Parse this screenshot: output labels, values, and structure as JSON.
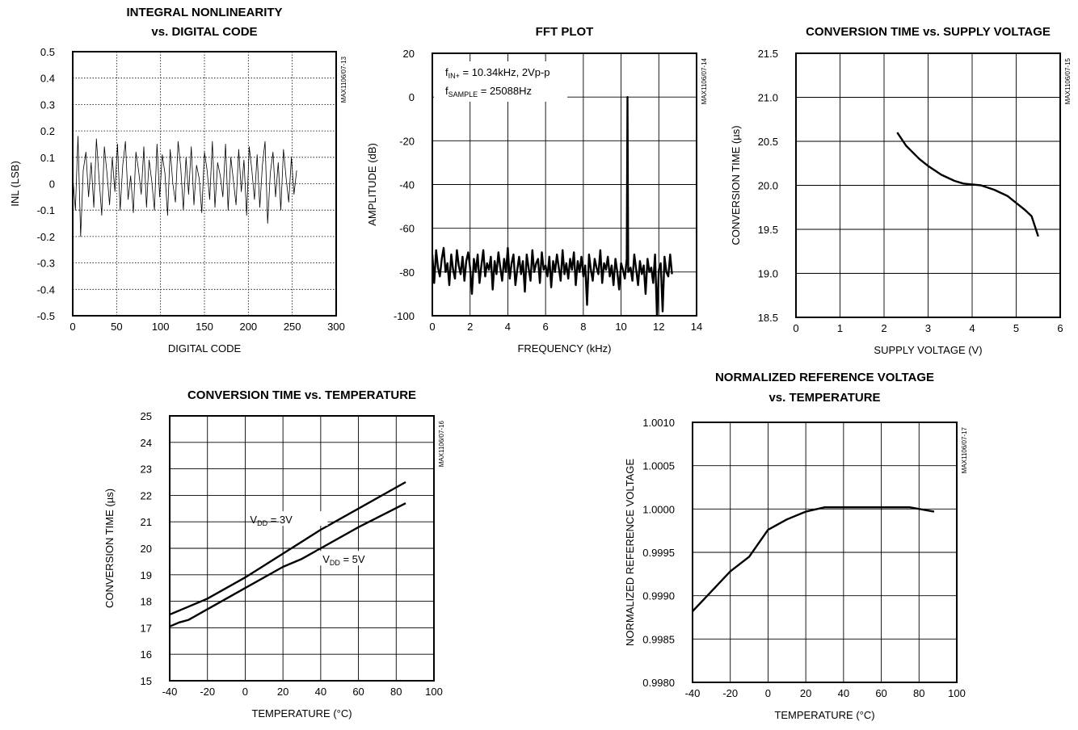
{
  "chart_data": [
    {
      "id": "inl",
      "type": "line",
      "title": [
        "INTEGRAL NONLINEARITY",
        "vs. DIGITAL CODE"
      ],
      "xlabel": "DIGITAL CODE",
      "ylabel": "INL (LSB)",
      "code": "MAX1106/07-13",
      "xlim": [
        0,
        300
      ],
      "ylim": [
        -0.5,
        0.5
      ],
      "xticks": [
        "0",
        "50",
        "100",
        "150",
        "200",
        "250",
        "300"
      ],
      "yticks": [
        "-0.5",
        "-0.4",
        "-0.3",
        "-0.2",
        "-0.1",
        "0",
        "0.1",
        "0.2",
        "0.3",
        "0.4",
        "0.5"
      ],
      "grid": "dotted",
      "series": [
        {
          "x": [
            0,
            3,
            6,
            9,
            12,
            15,
            18,
            21,
            24,
            27,
            30,
            33,
            36,
            39,
            42,
            45,
            48,
            51,
            54,
            57,
            60,
            63,
            66,
            69,
            72,
            75,
            78,
            81,
            84,
            87,
            90,
            93,
            96,
            99,
            102,
            105,
            108,
            111,
            114,
            117,
            120,
            123,
            126,
            129,
            132,
            135,
            138,
            141,
            144,
            147,
            150,
            153,
            156,
            159,
            162,
            165,
            168,
            171,
            174,
            177,
            180,
            183,
            186,
            189,
            192,
            195,
            198,
            201,
            204,
            207,
            210,
            213,
            216,
            219,
            222,
            225,
            228,
            231,
            234,
            237,
            240,
            243,
            246,
            249,
            252,
            255
          ],
          "y": [
            0.03,
            -0.1,
            0.18,
            -0.2,
            0.05,
            0.12,
            -0.05,
            0.08,
            -0.09,
            0.17,
            0.02,
            -0.12,
            0.14,
            0.04,
            -0.08,
            0.1,
            -0.03,
            0.15,
            -0.1,
            0.07,
            0.16,
            -0.06,
            0.03,
            -0.11,
            0.12,
            0.05,
            -0.04,
            0.14,
            -0.09,
            0.09,
            0.01,
            -0.1,
            0.15,
            -0.05,
            0.11,
            0.04,
            -0.12,
            0.13,
            0.0,
            -0.07,
            0.16,
            0.06,
            -0.1,
            0.1,
            -0.04,
            0.14,
            -0.08,
            0.07,
            0.02,
            -0.11,
            0.12,
            0.05,
            -0.06,
            0.16,
            -0.09,
            0.08,
            0.03,
            -0.05,
            0.15,
            -0.1,
            0.1,
            0.01,
            -0.08,
            0.13,
            -0.03,
            0.09,
            -0.12,
            0.14,
            0.05,
            -0.06,
            0.11,
            -0.09,
            0.07,
            0.16,
            -0.15,
            0.04,
            0.12,
            -0.05,
            0.08,
            -0.1,
            0.13,
            0.02,
            -0.07,
            0.1,
            -0.04,
            0.05
          ]
        }
      ]
    },
    {
      "id": "fft",
      "type": "line",
      "title": [
        "FFT PLOT"
      ],
      "xlabel": "FREQUENCY (kHz)",
      "ylabel": "AMPLITUDE (dB)",
      "code": "MAX1106/07-14",
      "xlim": [
        0,
        14
      ],
      "ylim": [
        -100,
        20
      ],
      "xticks": [
        "0",
        "2",
        "4",
        "6",
        "8",
        "10",
        "12",
        "14"
      ],
      "yticks": [
        "-100",
        "-80",
        "-60",
        "-40",
        "-20",
        "0",
        "20"
      ],
      "grid": "solid",
      "annotations": [
        {
          "prefix": "f",
          "sub": "IN+",
          "rest": " = 10.34kHz, 2Vp-p"
        },
        {
          "prefix": "f",
          "sub": "SAMPLE",
          "rest": " = 25088Hz"
        }
      ],
      "series": [
        {
          "x": [
            0.0,
            0.1,
            0.2,
            0.3,
            0.4,
            0.5,
            0.6,
            0.7,
            0.8,
            0.9,
            1.0,
            1.1,
            1.2,
            1.3,
            1.4,
            1.5,
            1.6,
            1.7,
            1.8,
            1.9,
            2.0,
            2.1,
            2.2,
            2.3,
            2.4,
            2.5,
            2.6,
            2.7,
            2.8,
            2.9,
            3.0,
            3.1,
            3.2,
            3.3,
            3.4,
            3.5,
            3.6,
            3.7,
            3.8,
            3.9,
            4.0,
            4.1,
            4.2,
            4.3,
            4.4,
            4.5,
            4.6,
            4.7,
            4.8,
            4.9,
            5.0,
            5.1,
            5.2,
            5.3,
            5.4,
            5.5,
            5.6,
            5.7,
            5.8,
            5.9,
            6.0,
            6.1,
            6.2,
            6.3,
            6.4,
            6.5,
            6.6,
            6.7,
            6.8,
            6.9,
            7.0,
            7.1,
            7.2,
            7.3,
            7.4,
            7.5,
            7.6,
            7.7,
            7.8,
            7.9,
            8.0,
            8.1,
            8.2,
            8.3,
            8.4,
            8.5,
            8.6,
            8.7,
            8.8,
            8.9,
            9.0,
            9.1,
            9.2,
            9.3,
            9.4,
            9.5,
            9.6,
            9.7,
            9.8,
            9.9,
            10.0,
            10.1,
            10.2,
            10.3,
            10.34,
            10.38,
            10.5,
            10.6,
            10.7,
            10.8,
            10.9,
            11.0,
            11.1,
            11.2,
            11.3,
            11.4,
            11.5,
            11.6,
            11.7,
            11.8,
            11.9,
            12.0,
            12.1,
            12.2,
            12.3,
            12.4,
            12.5,
            12.6,
            12.7
          ],
          "y": [
            -72,
            -85,
            -70,
            -78,
            -82,
            -74,
            -69,
            -80,
            -76,
            -86,
            -72,
            -79,
            -83,
            -70,
            -77,
            -81,
            -73,
            -84,
            -75,
            -71,
            -78,
            -90,
            -74,
            -80,
            -72,
            -85,
            -77,
            -70,
            -82,
            -76,
            -79,
            -73,
            -88,
            -75,
            -81,
            -71,
            -78,
            -84,
            -74,
            -80,
            -69,
            -83,
            -76,
            -72,
            -86,
            -79,
            -73,
            -81,
            -75,
            -89,
            -72,
            -78,
            -84,
            -70,
            -80,
            -76,
            -74,
            -85,
            -71,
            -79,
            -77,
            -82,
            -73,
            -87,
            -75,
            -80,
            -72,
            -78,
            -84,
            -70,
            -81,
            -76,
            -83,
            -74,
            -79,
            -71,
            -86,
            -75,
            -80,
            -73,
            -82,
            -77,
            -95,
            -72,
            -79,
            -84,
            -74,
            -78,
            -81,
            -70,
            -85,
            -76,
            -79,
            -73,
            -82,
            -77,
            -86,
            -74,
            -80,
            -88,
            -76,
            -79,
            -83,
            -74,
            0,
            -80,
            -78,
            -84,
            -72,
            -79,
            -86,
            -75,
            -81,
            -77,
            -90,
            -74,
            -80,
            -78,
            -85,
            -72,
            -100,
            -79,
            -76,
            -98,
            -73,
            -80,
            -82,
            -72,
            -81
          ]
        }
      ]
    },
    {
      "id": "ctsv",
      "type": "line",
      "title": [
        "CONVERSION TIME vs. SUPPLY VOLTAGE"
      ],
      "xlabel": "SUPPLY VOLTAGE (V)",
      "ylabel": "CONVERSION TIME (µs)",
      "code": "MAX1106/07-15",
      "xlim": [
        0,
        6
      ],
      "ylim": [
        18.5,
        21.5
      ],
      "xticks": [
        "0",
        "1",
        "2",
        "3",
        "4",
        "5",
        "6"
      ],
      "yticks": [
        "18.5",
        "19.0",
        "19.5",
        "20.0",
        "20.5",
        "21.0",
        "21.5"
      ],
      "grid": "solid",
      "series": [
        {
          "x": [
            2.3,
            2.5,
            2.8,
            3.0,
            3.3,
            3.6,
            3.8,
            4.0,
            4.2,
            4.5,
            4.8,
            5.0,
            5.2,
            5.35,
            5.5
          ],
          "y": [
            20.6,
            20.45,
            20.3,
            20.22,
            20.12,
            20.05,
            20.02,
            20.01,
            20.0,
            19.95,
            19.88,
            19.8,
            19.72,
            19.65,
            19.42
          ]
        }
      ]
    },
    {
      "id": "cttemp",
      "type": "line",
      "title": [
        "CONVERSION TIME vs. TEMPERATURE"
      ],
      "xlabel": "TEMPERATURE (°C)",
      "ylabel": "CONVERSION TIME (µs)",
      "code": "MAX1106/07-16",
      "xlim": [
        -40,
        100
      ],
      "ylim": [
        15,
        25
      ],
      "xticks": [
        "-40",
        "-20",
        "0",
        "20",
        "40",
        "60",
        "80",
        "100"
      ],
      "yticks": [
        "15",
        "16",
        "17",
        "18",
        "19",
        "20",
        "21",
        "22",
        "23",
        "24",
        "25"
      ],
      "grid": "solid",
      "series": [
        {
          "name": "VDD = 3V",
          "label": {
            "prefix": "V",
            "sub": "DD",
            "rest": " = 3V"
          },
          "x": [
            -40,
            -30,
            -20,
            0,
            20,
            40,
            60,
            85
          ],
          "y": [
            17.5,
            17.8,
            18.1,
            18.9,
            19.8,
            20.7,
            21.5,
            22.5
          ]
        },
        {
          "name": "VDD = 5V",
          "label": {
            "prefix": "V",
            "sub": "DD",
            "rest": " = 5V"
          },
          "x": [
            -40,
            -35,
            -30,
            -20,
            0,
            20,
            30,
            40,
            60,
            85
          ],
          "y": [
            17.05,
            17.2,
            17.3,
            17.7,
            18.5,
            19.3,
            19.6,
            20.0,
            20.8,
            21.7
          ]
        }
      ]
    },
    {
      "id": "nrv",
      "type": "line",
      "title": [
        "NORMALIZED REFERENCE VOLTAGE",
        "vs. TEMPERATURE"
      ],
      "xlabel": "TEMPERATURE (°C)",
      "ylabel": "NORMALIZED REFERENCE VOLTAGE",
      "code": "MAX1106/07-17",
      "xlim": [
        -40,
        100
      ],
      "ylim": [
        0.998,
        1.001
      ],
      "xticks": [
        "-40",
        "-20",
        "0",
        "20",
        "40",
        "60",
        "80",
        "100"
      ],
      "yticks": [
        "0.9980",
        "0.9985",
        "0.9990",
        "0.9995",
        "1.0000",
        "1.0005",
        "1.0010"
      ],
      "grid": "solid",
      "series": [
        {
          "x": [
            -40,
            -30,
            -20,
            -10,
            0,
            10,
            20,
            30,
            40,
            60,
            75,
            88
          ],
          "y": [
            0.99882,
            0.99905,
            0.99928,
            0.99945,
            0.99976,
            0.99988,
            0.99997,
            1.00002,
            1.00002,
            1.00002,
            1.00002,
            0.99997
          ]
        }
      ]
    }
  ]
}
